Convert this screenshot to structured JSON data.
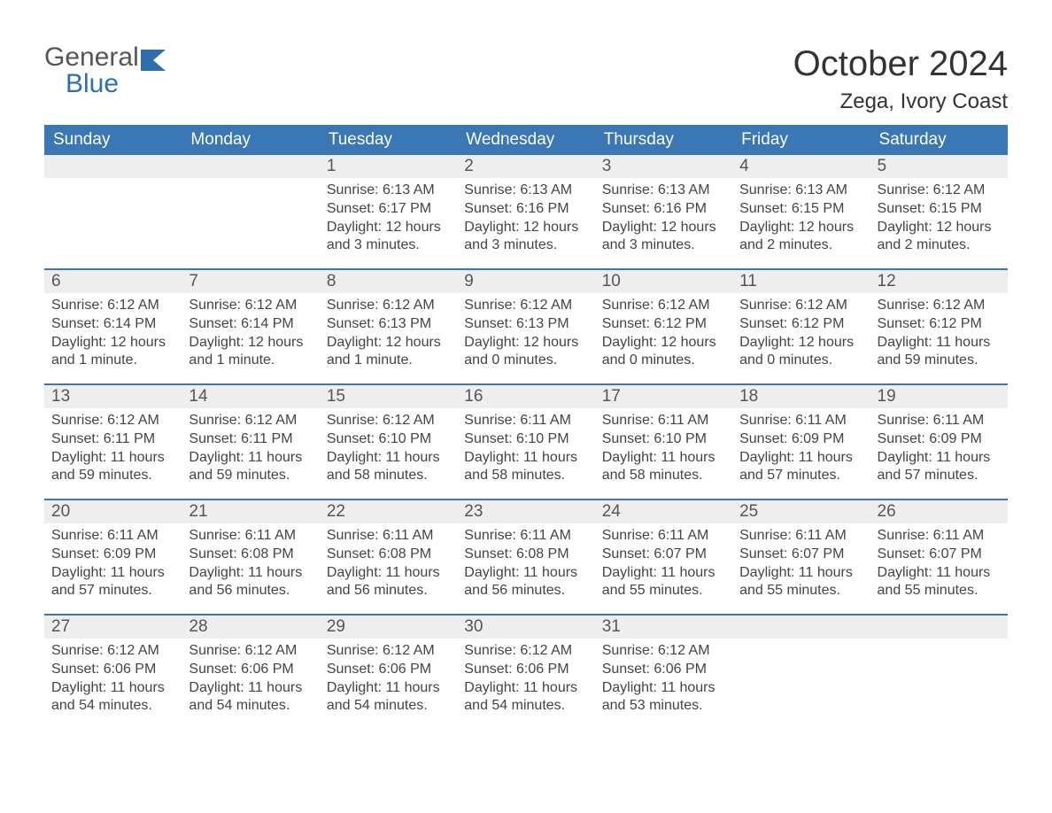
{
  "logo": {
    "line1": "General",
    "line2": "Blue",
    "color_general": "#555555",
    "color_blue": "#2f6fb0",
    "icon_color": "#2f6fb0"
  },
  "title": "October 2024",
  "location": "Zega, Ivory Coast",
  "colors": {
    "header_bg": "#3b76b5",
    "header_text": "#ffffff",
    "daynum_bg": "#eeeeee",
    "daynum_text": "#555555",
    "body_text": "#444444",
    "week_border": "#3b76b5",
    "page_bg": "#ffffff"
  },
  "type": "table",
  "weekdays": [
    "Sunday",
    "Monday",
    "Tuesday",
    "Wednesday",
    "Thursday",
    "Friday",
    "Saturday"
  ],
  "weeks": [
    [
      null,
      null,
      {
        "n": "1",
        "sunrise": "6:13 AM",
        "sunset": "6:17 PM",
        "daylight": "12 hours and 3 minutes."
      },
      {
        "n": "2",
        "sunrise": "6:13 AM",
        "sunset": "6:16 PM",
        "daylight": "12 hours and 3 minutes."
      },
      {
        "n": "3",
        "sunrise": "6:13 AM",
        "sunset": "6:16 PM",
        "daylight": "12 hours and 3 minutes."
      },
      {
        "n": "4",
        "sunrise": "6:13 AM",
        "sunset": "6:15 PM",
        "daylight": "12 hours and 2 minutes."
      },
      {
        "n": "5",
        "sunrise": "6:12 AM",
        "sunset": "6:15 PM",
        "daylight": "12 hours and 2 minutes."
      }
    ],
    [
      {
        "n": "6",
        "sunrise": "6:12 AM",
        "sunset": "6:14 PM",
        "daylight": "12 hours and 1 minute."
      },
      {
        "n": "7",
        "sunrise": "6:12 AM",
        "sunset": "6:14 PM",
        "daylight": "12 hours and 1 minute."
      },
      {
        "n": "8",
        "sunrise": "6:12 AM",
        "sunset": "6:13 PM",
        "daylight": "12 hours and 1 minute."
      },
      {
        "n": "9",
        "sunrise": "6:12 AM",
        "sunset": "6:13 PM",
        "daylight": "12 hours and 0 minutes."
      },
      {
        "n": "10",
        "sunrise": "6:12 AM",
        "sunset": "6:12 PM",
        "daylight": "12 hours and 0 minutes."
      },
      {
        "n": "11",
        "sunrise": "6:12 AM",
        "sunset": "6:12 PM",
        "daylight": "12 hours and 0 minutes."
      },
      {
        "n": "12",
        "sunrise": "6:12 AM",
        "sunset": "6:12 PM",
        "daylight": "11 hours and 59 minutes."
      }
    ],
    [
      {
        "n": "13",
        "sunrise": "6:12 AM",
        "sunset": "6:11 PM",
        "daylight": "11 hours and 59 minutes."
      },
      {
        "n": "14",
        "sunrise": "6:12 AM",
        "sunset": "6:11 PM",
        "daylight": "11 hours and 59 minutes."
      },
      {
        "n": "15",
        "sunrise": "6:12 AM",
        "sunset": "6:10 PM",
        "daylight": "11 hours and 58 minutes."
      },
      {
        "n": "16",
        "sunrise": "6:11 AM",
        "sunset": "6:10 PM",
        "daylight": "11 hours and 58 minutes."
      },
      {
        "n": "17",
        "sunrise": "6:11 AM",
        "sunset": "6:10 PM",
        "daylight": "11 hours and 58 minutes."
      },
      {
        "n": "18",
        "sunrise": "6:11 AM",
        "sunset": "6:09 PM",
        "daylight": "11 hours and 57 minutes."
      },
      {
        "n": "19",
        "sunrise": "6:11 AM",
        "sunset": "6:09 PM",
        "daylight": "11 hours and 57 minutes."
      }
    ],
    [
      {
        "n": "20",
        "sunrise": "6:11 AM",
        "sunset": "6:09 PM",
        "daylight": "11 hours and 57 minutes."
      },
      {
        "n": "21",
        "sunrise": "6:11 AM",
        "sunset": "6:08 PM",
        "daylight": "11 hours and 56 minutes."
      },
      {
        "n": "22",
        "sunrise": "6:11 AM",
        "sunset": "6:08 PM",
        "daylight": "11 hours and 56 minutes."
      },
      {
        "n": "23",
        "sunrise": "6:11 AM",
        "sunset": "6:08 PM",
        "daylight": "11 hours and 56 minutes."
      },
      {
        "n": "24",
        "sunrise": "6:11 AM",
        "sunset": "6:07 PM",
        "daylight": "11 hours and 55 minutes."
      },
      {
        "n": "25",
        "sunrise": "6:11 AM",
        "sunset": "6:07 PM",
        "daylight": "11 hours and 55 minutes."
      },
      {
        "n": "26",
        "sunrise": "6:11 AM",
        "sunset": "6:07 PM",
        "daylight": "11 hours and 55 minutes."
      }
    ],
    [
      {
        "n": "27",
        "sunrise": "6:12 AM",
        "sunset": "6:06 PM",
        "daylight": "11 hours and 54 minutes."
      },
      {
        "n": "28",
        "sunrise": "6:12 AM",
        "sunset": "6:06 PM",
        "daylight": "11 hours and 54 minutes."
      },
      {
        "n": "29",
        "sunrise": "6:12 AM",
        "sunset": "6:06 PM",
        "daylight": "11 hours and 54 minutes."
      },
      {
        "n": "30",
        "sunrise": "6:12 AM",
        "sunset": "6:06 PM",
        "daylight": "11 hours and 54 minutes."
      },
      {
        "n": "31",
        "sunrise": "6:12 AM",
        "sunset": "6:06 PM",
        "daylight": "11 hours and 53 minutes."
      },
      null,
      null
    ]
  ],
  "labels": {
    "sunrise_prefix": "Sunrise: ",
    "sunset_prefix": "Sunset: ",
    "daylight_prefix": "Daylight: "
  },
  "fonts": {
    "title_size_pt": 30,
    "location_size_pt": 18,
    "weekday_size_pt": 14,
    "daynum_size_pt": 14,
    "body_size_pt": 12
  }
}
